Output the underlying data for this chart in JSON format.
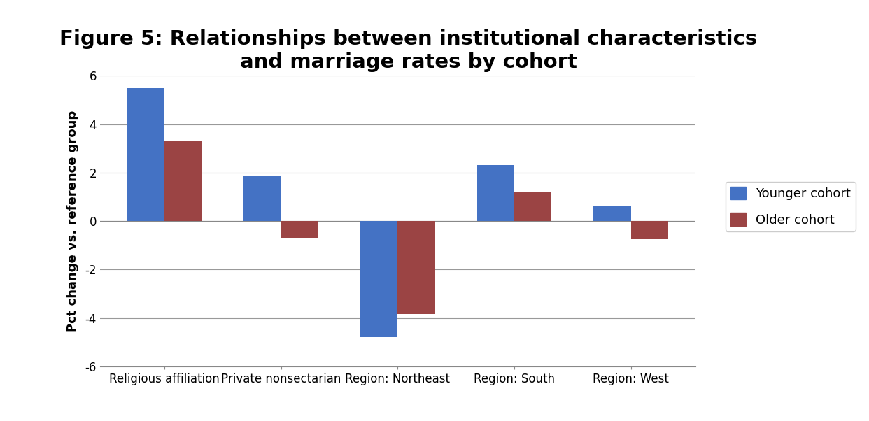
{
  "title_line1": "Figure 5: Relationships between institutional characteristics",
  "title_line2": "and marriage rates by cohort",
  "categories": [
    "Religious affiliation",
    "Private nonsectarian",
    "Region: Northeast",
    "Region: South",
    "Region: West"
  ],
  "younger_cohort": [
    5.5,
    1.85,
    -4.8,
    2.3,
    0.6
  ],
  "older_cohort": [
    3.3,
    -0.7,
    -3.85,
    1.2,
    -0.75
  ],
  "younger_color": "#4472C4",
  "older_color": "#9B4444",
  "ylabel": "Pct change vs. reference group",
  "ylim": [
    -6,
    6
  ],
  "yticks": [
    -6,
    -4,
    -2,
    0,
    2,
    4,
    6
  ],
  "legend_labels": [
    "Younger cohort",
    "Older cohort"
  ],
  "background_color": "#FFFFFF",
  "grid_color": "#999999",
  "bar_width": 0.32,
  "title_fontsize": 21,
  "axis_fontsize": 13,
  "tick_fontsize": 12,
  "legend_fontsize": 13
}
